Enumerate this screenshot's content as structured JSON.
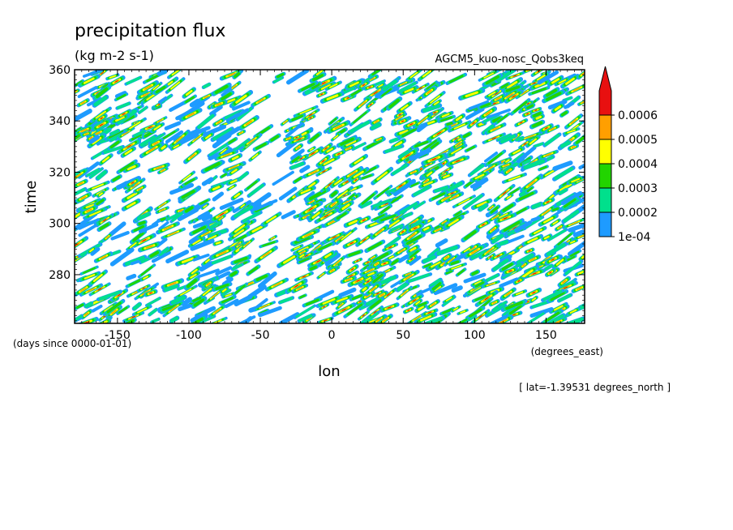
{
  "chart_data": {
    "type": "heatmap",
    "title": "precipitation flux",
    "units": "(kg m-2 s-1)",
    "model_label": "AGCM5_kuo-nosc_Qobs3keq",
    "xlabel": "lon",
    "ylabel": "time",
    "x_units": "(degrees_east)",
    "y_units": "(days since 0000-01-01)",
    "slice_label": "[ lat=-1.39531 degrees_north ]",
    "xlim": [
      -180,
      177
    ],
    "ylim": [
      261,
      360
    ],
    "x_ticks": [
      -150,
      -100,
      -50,
      0,
      50,
      100,
      150
    ],
    "x_tick_labels": [
      "-150",
      "-100",
      "-50",
      "0",
      "50",
      "100",
      "150"
    ],
    "y_ticks": [
      280,
      300,
      320,
      340,
      360
    ],
    "y_tick_labels": [
      "280",
      "300",
      "320",
      "340",
      "360"
    ],
    "colorbar": {
      "levels": [
        0.0001,
        0.0002,
        0.0003,
        0.0004,
        0.0005,
        0.0006
      ],
      "level_labels": [
        "1e-04",
        "0.0002",
        "0.0003",
        "0.0004",
        "0.0005",
        "0.0006"
      ],
      "colors": [
        "#1e9bff",
        "#00e08c",
        "#22d400",
        "#ffff00",
        "#ff9f00",
        "#e81010"
      ],
      "extend": "max"
    }
  }
}
